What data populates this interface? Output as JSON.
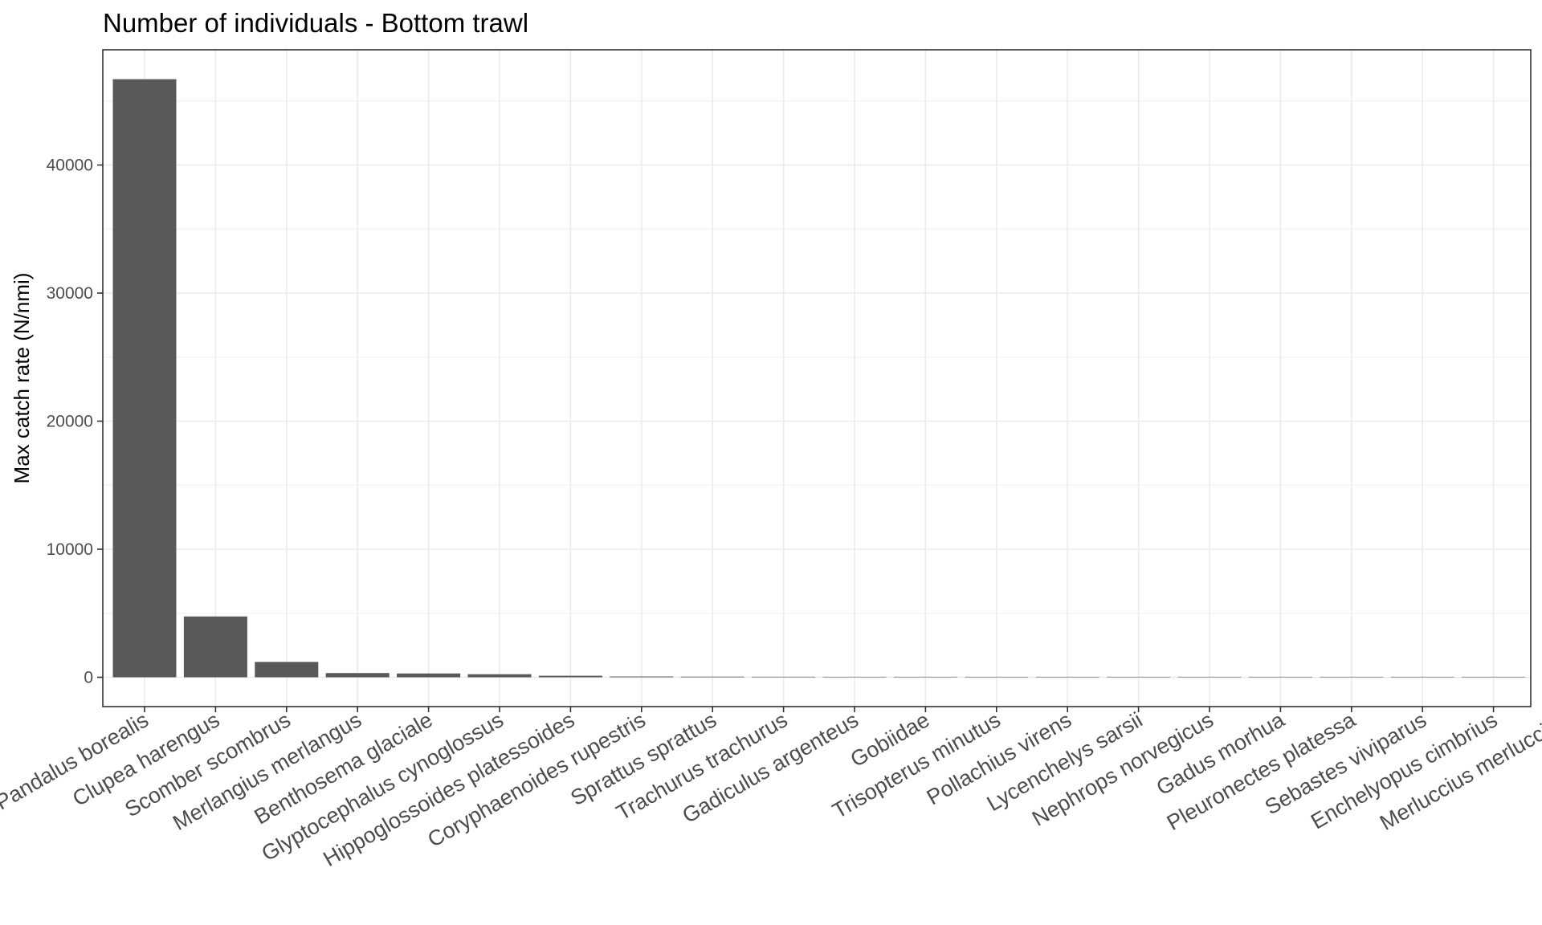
{
  "chart_data": {
    "type": "bar",
    "title": "Number of individuals - Bottom trawl",
    "xlabel": "",
    "ylabel": "Max catch rate (N/nmi)",
    "ylim": [
      -2300,
      49200
    ],
    "yticks": [
      0,
      10000,
      20000,
      30000,
      40000
    ],
    "grid": true,
    "bar_color": "#595959",
    "categories": [
      "Pandalus borealis",
      "Clupea harengus",
      "Scomber scombrus",
      "Merlangius merlangus",
      "Benthosema glaciale",
      "Glyptocephalus cynoglossus",
      "Hippoglossoides platessoides",
      "Coryphaenoides rupestris",
      "Sprattus sprattus",
      "Trachurus trachurus",
      "Gadiculus argenteus",
      "Gobiidae",
      "Trisopterus minutus",
      "Pollachius virens",
      "Lycenchelys sarsii",
      "Nephrops norvegicus",
      "Gadus morhua",
      "Pleuronectes platessa",
      "Sebastes viviparus",
      "Enchelyopus cimbrius",
      "Merluccius merluccius"
    ],
    "values": [
      46700,
      4750,
      1200,
      330,
      300,
      240,
      120,
      60,
      50,
      40,
      35,
      30,
      25,
      20,
      15,
      5,
      4,
      3,
      2,
      1,
      1
    ]
  }
}
